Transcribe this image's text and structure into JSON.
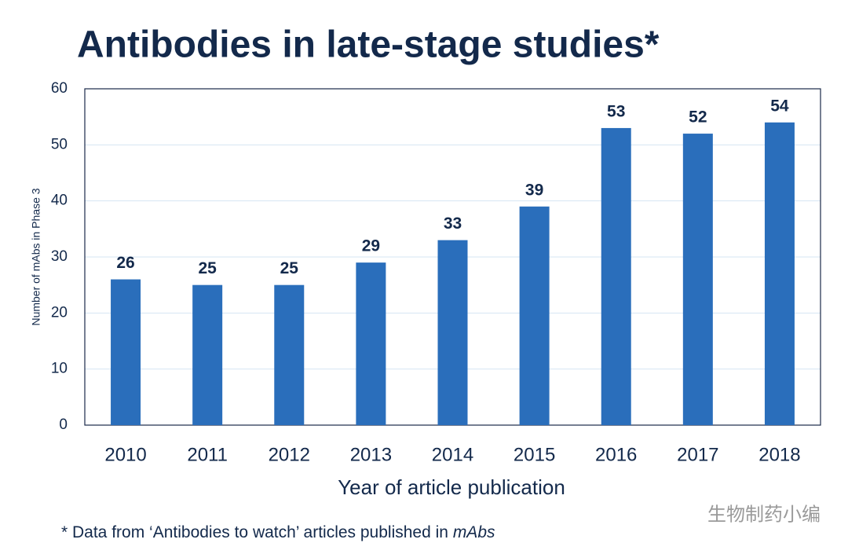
{
  "chart_data": {
    "type": "bar",
    "title": "Antibodies in late-stage studies*",
    "y_label": "Number of mAbs in Phase 3",
    "x_label": "Year of article publication",
    "categories": [
      "2010",
      "2011",
      "2012",
      "2013",
      "2014",
      "2015",
      "2016",
      "2017",
      "2018"
    ],
    "values": [
      26,
      25,
      25,
      29,
      33,
      39,
      53,
      52,
      54
    ],
    "color": "#2a6ebb",
    "ylim": [
      0,
      60
    ],
    "yticks": [
      0,
      10,
      20,
      30,
      40,
      50,
      60
    ],
    "grid": true,
    "footnote": "* Data from ‘Antibodies to watch’ articles published in",
    "footnote_emphasis": "mAbs",
    "watermark": "生物制药小编"
  }
}
